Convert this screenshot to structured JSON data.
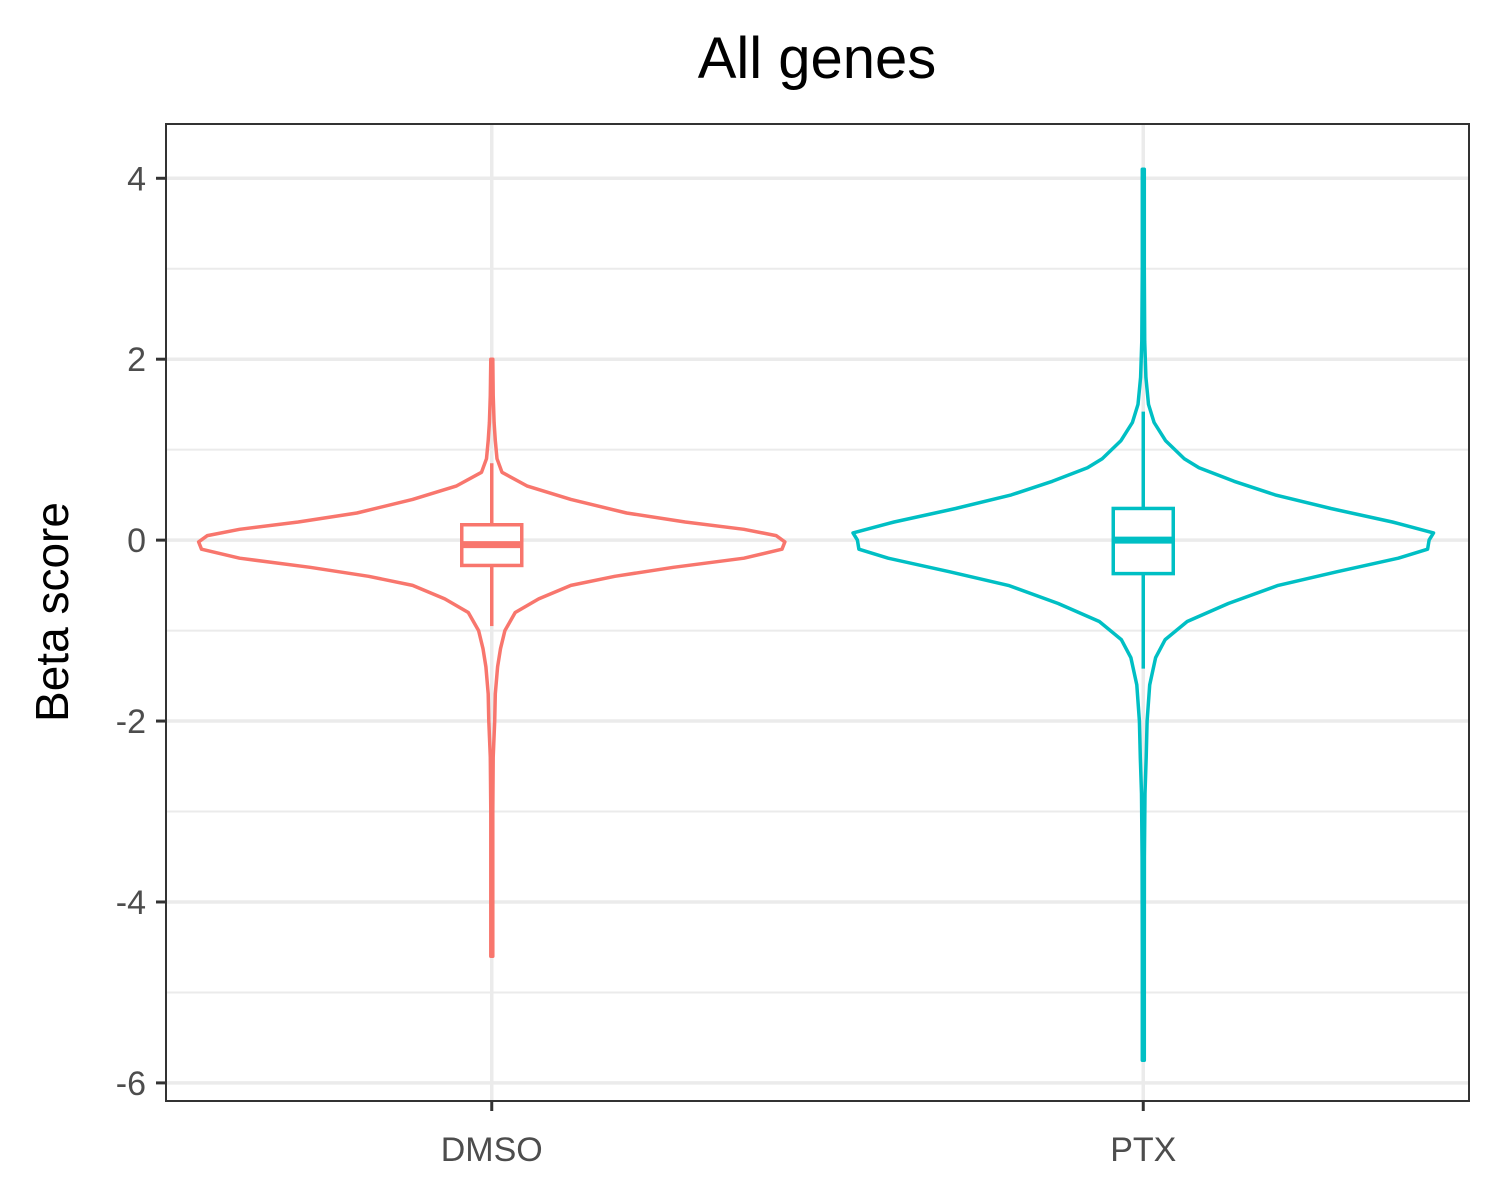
{
  "chart_data": {
    "type": "violin",
    "title": "All genes",
    "xlabel": "",
    "ylabel": "Beta score",
    "ylim": [
      -6.2,
      4.6
    ],
    "yticks": [
      4,
      2,
      0,
      -2,
      -4,
      -6
    ],
    "ytick_labels": [
      "4",
      "2",
      "0",
      "-2",
      "-4",
      "-6"
    ],
    "yminor": [
      3,
      1,
      -1,
      -3,
      -5
    ],
    "grid": true,
    "legend": "none",
    "categories": [
      "DMSO",
      "PTX"
    ],
    "series": [
      {
        "category": "DMSO",
        "color": "#F8766D",
        "box": {
          "q1": -0.28,
          "median": -0.05,
          "q3": 0.17,
          "whisker_low": -0.95,
          "whisker_high": 0.85
        },
        "range": [
          -4.6,
          2.0
        ],
        "density": [
          [
            -4.6,
            0.002
          ],
          [
            -3.0,
            0.003
          ],
          [
            -2.4,
            0.005
          ],
          [
            -2.0,
            0.01
          ],
          [
            -1.7,
            0.012
          ],
          [
            -1.4,
            0.02
          ],
          [
            -1.2,
            0.03
          ],
          [
            -1.0,
            0.045
          ],
          [
            -0.8,
            0.08
          ],
          [
            -0.65,
            0.16
          ],
          [
            -0.5,
            0.27
          ],
          [
            -0.4,
            0.42
          ],
          [
            -0.3,
            0.62
          ],
          [
            -0.2,
            0.86
          ],
          [
            -0.1,
            0.99
          ],
          [
            -0.02,
            1.0
          ],
          [
            0.05,
            0.97
          ],
          [
            0.12,
            0.86
          ],
          [
            0.2,
            0.66
          ],
          [
            0.3,
            0.46
          ],
          [
            0.45,
            0.27
          ],
          [
            0.6,
            0.12
          ],
          [
            0.75,
            0.035
          ],
          [
            0.9,
            0.018
          ],
          [
            1.1,
            0.012
          ],
          [
            1.3,
            0.008
          ],
          [
            1.6,
            0.005
          ],
          [
            2.0,
            0.002
          ]
        ]
      },
      {
        "category": "PTX",
        "color": "#00BFC4",
        "box": {
          "q1": -0.37,
          "median": 0.0,
          "q3": 0.35,
          "whisker_low": -1.42,
          "whisker_high": 1.42
        },
        "range": [
          -5.75,
          4.1
        ],
        "density": [
          [
            -5.75,
            0.002
          ],
          [
            -4.5,
            0.003
          ],
          [
            -3.5,
            0.004
          ],
          [
            -2.8,
            0.006
          ],
          [
            -2.4,
            0.01
          ],
          [
            -2.0,
            0.013
          ],
          [
            -1.6,
            0.022
          ],
          [
            -1.3,
            0.042
          ],
          [
            -1.1,
            0.075
          ],
          [
            -0.9,
            0.15
          ],
          [
            -0.7,
            0.29
          ],
          [
            -0.5,
            0.46
          ],
          [
            -0.35,
            0.66
          ],
          [
            -0.2,
            0.87
          ],
          [
            -0.1,
            0.97
          ],
          [
            0.0,
            0.975
          ],
          [
            0.08,
            0.99
          ],
          [
            0.2,
            0.85
          ],
          [
            0.35,
            0.64
          ],
          [
            0.5,
            0.45
          ],
          [
            0.65,
            0.31
          ],
          [
            0.8,
            0.19
          ],
          [
            0.9,
            0.14
          ],
          [
            1.1,
            0.076
          ],
          [
            1.3,
            0.037
          ],
          [
            1.5,
            0.018
          ],
          [
            1.8,
            0.009
          ],
          [
            2.2,
            0.005
          ],
          [
            3.0,
            0.003
          ],
          [
            4.1,
            0.002
          ]
        ]
      }
    ]
  }
}
